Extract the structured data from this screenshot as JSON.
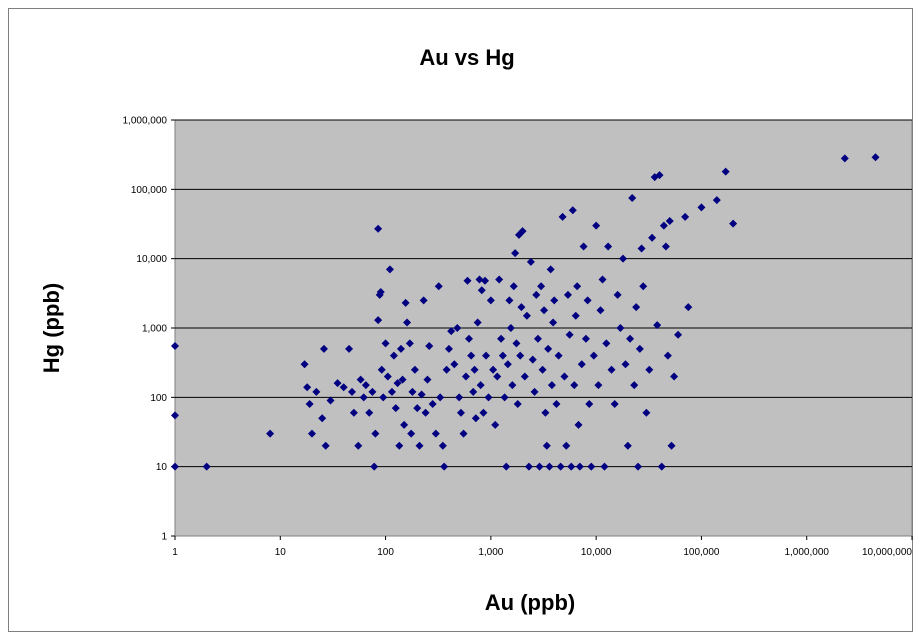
{
  "chart_data": {
    "type": "scatter",
    "title": "Au vs Hg",
    "xlabel": "Au (ppb)",
    "ylabel": "Hg (ppb)",
    "x_scale": "log",
    "y_scale": "log",
    "xlim": [
      1,
      10000000
    ],
    "ylim": [
      1,
      1000000
    ],
    "x_ticks": [
      1,
      10,
      100,
      1000,
      10000,
      100000,
      1000000,
      10000000
    ],
    "x_tick_labels": [
      "1",
      "10",
      "100",
      "1,000",
      "10,000",
      "100,000",
      "1,000,000",
      "10,000,000"
    ],
    "y_ticks": [
      1,
      10,
      100,
      1000,
      10000,
      100000,
      1000000
    ],
    "y_tick_labels": [
      "1",
      "10",
      "100",
      "1,000",
      "10,000",
      "100,000",
      "1,000,000"
    ],
    "grid": "horizontal major gridlines",
    "legend": "none",
    "colors": {
      "plot_background": "#c0c0c0",
      "marker": "#000080",
      "gridline": "#000000",
      "frame": "#7f7f7f"
    },
    "series": [
      {
        "marker": "diamond",
        "points": [
          [
            1,
            550
          ],
          [
            1,
            55
          ],
          [
            1,
            10
          ],
          [
            2,
            10
          ],
          [
            8,
            30
          ],
          [
            17,
            300
          ],
          [
            18,
            140
          ],
          [
            19,
            80
          ],
          [
            20,
            30
          ],
          [
            22,
            120
          ],
          [
            25,
            50
          ],
          [
            26,
            500
          ],
          [
            27,
            20
          ],
          [
            30,
            90
          ],
          [
            35,
            160
          ],
          [
            40,
            140
          ],
          [
            45,
            500
          ],
          [
            48,
            120
          ],
          [
            50,
            60
          ],
          [
            55,
            20
          ],
          [
            58,
            180
          ],
          [
            62,
            100
          ],
          [
            65,
            150
          ],
          [
            70,
            60
          ],
          [
            75,
            120
          ],
          [
            78,
            10
          ],
          [
            80,
            30
          ],
          [
            85,
            27000
          ],
          [
            85,
            1300
          ],
          [
            88,
            3000
          ],
          [
            90,
            3300
          ],
          [
            92,
            250
          ],
          [
            95,
            100
          ],
          [
            100,
            600
          ],
          [
            105,
            200
          ],
          [
            110,
            7000
          ],
          [
            115,
            120
          ],
          [
            120,
            400
          ],
          [
            125,
            70
          ],
          [
            130,
            160
          ],
          [
            135,
            20
          ],
          [
            140,
            500
          ],
          [
            145,
            180
          ],
          [
            150,
            40
          ],
          [
            155,
            2300
          ],
          [
            160,
            1200
          ],
          [
            170,
            600
          ],
          [
            175,
            30
          ],
          [
            180,
            120
          ],
          [
            190,
            250
          ],
          [
            200,
            70
          ],
          [
            210,
            20
          ],
          [
            220,
            110
          ],
          [
            230,
            2500
          ],
          [
            240,
            60
          ],
          [
            250,
            180
          ],
          [
            260,
            550
          ],
          [
            280,
            80
          ],
          [
            300,
            30
          ],
          [
            320,
            4000
          ],
          [
            330,
            100
          ],
          [
            350,
            20
          ],
          [
            360,
            10
          ],
          [
            380,
            250
          ],
          [
            400,
            500
          ],
          [
            420,
            900
          ],
          [
            450,
            300
          ],
          [
            480,
            1000
          ],
          [
            500,
            100
          ],
          [
            520,
            60
          ],
          [
            550,
            30
          ],
          [
            580,
            200
          ],
          [
            600,
            4800
          ],
          [
            620,
            700
          ],
          [
            650,
            400
          ],
          [
            680,
            120
          ],
          [
            700,
            250
          ],
          [
            720,
            50
          ],
          [
            750,
            1200
          ],
          [
            780,
            5000
          ],
          [
            800,
            150
          ],
          [
            820,
            3500
          ],
          [
            850,
            60
          ],
          [
            880,
            4800
          ],
          [
            900,
            400
          ],
          [
            950,
            100
          ],
          [
            1000,
            2500
          ],
          [
            1050,
            250
          ],
          [
            1100,
            40
          ],
          [
            1150,
            200
          ],
          [
            1200,
            5000
          ],
          [
            1250,
            700
          ],
          [
            1300,
            400
          ],
          [
            1350,
            100
          ],
          [
            1400,
            10
          ],
          [
            1450,
            300
          ],
          [
            1500,
            2500
          ],
          [
            1550,
            1000
          ],
          [
            1600,
            150
          ],
          [
            1650,
            4000
          ],
          [
            1700,
            12000
          ],
          [
            1750,
            600
          ],
          [
            1800,
            80
          ],
          [
            1850,
            22000
          ],
          [
            1900,
            400
          ],
          [
            1950,
            2000
          ],
          [
            2000,
            25000
          ],
          [
            2100,
            200
          ],
          [
            2200,
            1500
          ],
          [
            2300,
            10
          ],
          [
            2400,
            9000
          ],
          [
            2500,
            350
          ],
          [
            2600,
            120
          ],
          [
            2700,
            3000
          ],
          [
            2800,
            700
          ],
          [
            2900,
            10
          ],
          [
            3000,
            4000
          ],
          [
            3100,
            250
          ],
          [
            3200,
            1800
          ],
          [
            3300,
            60
          ],
          [
            3400,
            20
          ],
          [
            3500,
            500
          ],
          [
            3600,
            10
          ],
          [
            3700,
            7000
          ],
          [
            3800,
            150
          ],
          [
            3900,
            1200
          ],
          [
            4000,
            2500
          ],
          [
            4200,
            80
          ],
          [
            4400,
            400
          ],
          [
            4600,
            10
          ],
          [
            4800,
            40000
          ],
          [
            5000,
            200
          ],
          [
            5200,
            20
          ],
          [
            5400,
            3000
          ],
          [
            5600,
            800
          ],
          [
            5800,
            10
          ],
          [
            6000,
            50000
          ],
          [
            6200,
            150
          ],
          [
            6400,
            1500
          ],
          [
            6600,
            4000
          ],
          [
            6800,
            40
          ],
          [
            7000,
            10
          ],
          [
            7300,
            300
          ],
          [
            7600,
            15000
          ],
          [
            8000,
            700
          ],
          [
            8300,
            2500
          ],
          [
            8600,
            80
          ],
          [
            9000,
            10
          ],
          [
            9500,
            400
          ],
          [
            10000,
            30000
          ],
          [
            10500,
            150
          ],
          [
            11000,
            1800
          ],
          [
            11500,
            5000
          ],
          [
            12000,
            10
          ],
          [
            12500,
            600
          ],
          [
            13000,
            15000
          ],
          [
            14000,
            250
          ],
          [
            15000,
            80
          ],
          [
            16000,
            3000
          ],
          [
            17000,
            1000
          ],
          [
            18000,
            10000
          ],
          [
            19000,
            300
          ],
          [
            20000,
            20
          ],
          [
            21000,
            700
          ],
          [
            22000,
            75000
          ],
          [
            23000,
            150
          ],
          [
            24000,
            2000
          ],
          [
            25000,
            10
          ],
          [
            26000,
            500
          ],
          [
            27000,
            14000
          ],
          [
            28000,
            4000
          ],
          [
            30000,
            60
          ],
          [
            32000,
            250
          ],
          [
            34000,
            20000
          ],
          [
            36000,
            150000
          ],
          [
            38000,
            1100
          ],
          [
            40000,
            160000
          ],
          [
            42000,
            10
          ],
          [
            44000,
            30000
          ],
          [
            46000,
            15000
          ],
          [
            48000,
            400
          ],
          [
            50000,
            35000
          ],
          [
            52000,
            20
          ],
          [
            55000,
            200
          ],
          [
            60000,
            800
          ],
          [
            70000,
            40000
          ],
          [
            75000,
            2000
          ],
          [
            100000,
            55000
          ],
          [
            140000,
            70000
          ],
          [
            170000,
            180000
          ],
          [
            200000,
            32000
          ],
          [
            2300000,
            280000
          ],
          [
            4500000,
            290000
          ]
        ]
      }
    ]
  }
}
